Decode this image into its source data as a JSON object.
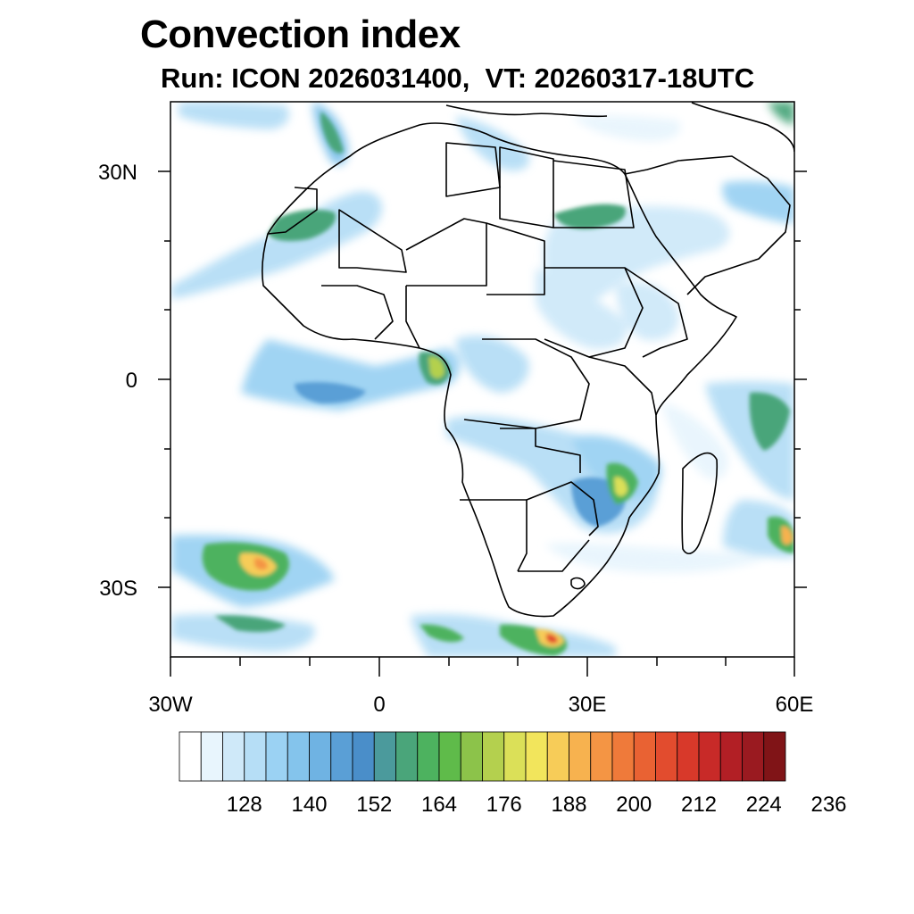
{
  "title": "Convection index",
  "subtitle": "Run: ICON 2026031400,  VT: 20260317-18UTC",
  "map": {
    "extent": {
      "lon_min": -30,
      "lon_max": 60,
      "lat_min": -40,
      "lat_max": 40
    },
    "y_axis_labels": [
      "30N",
      "0",
      "30S"
    ],
    "x_axis_labels": [
      "30W",
      "0",
      "30E",
      "60E"
    ]
  },
  "colorbar": {
    "labels": [
      "128",
      "140",
      "152",
      "164",
      "176",
      "188",
      "200",
      "212",
      "224",
      "236"
    ],
    "colors": [
      "#ffffff",
      "#e8f5fd",
      "#cfe9f9",
      "#b6def6",
      "#9bd2f3",
      "#84c4ec",
      "#6fb3e3",
      "#5a9fd6",
      "#4a8ec9",
      "#4b9a9c",
      "#4aa57a",
      "#4db25f",
      "#5fbb4a",
      "#8cc34a",
      "#b4d04e",
      "#dbe058",
      "#f2e55c",
      "#f7cc58",
      "#f7b24f",
      "#f49544",
      "#ef7a3a",
      "#e96233",
      "#e24c2e",
      "#d8392a",
      "#c82a28",
      "#b21f25",
      "#9a1a20",
      "#801417"
    ]
  }
}
